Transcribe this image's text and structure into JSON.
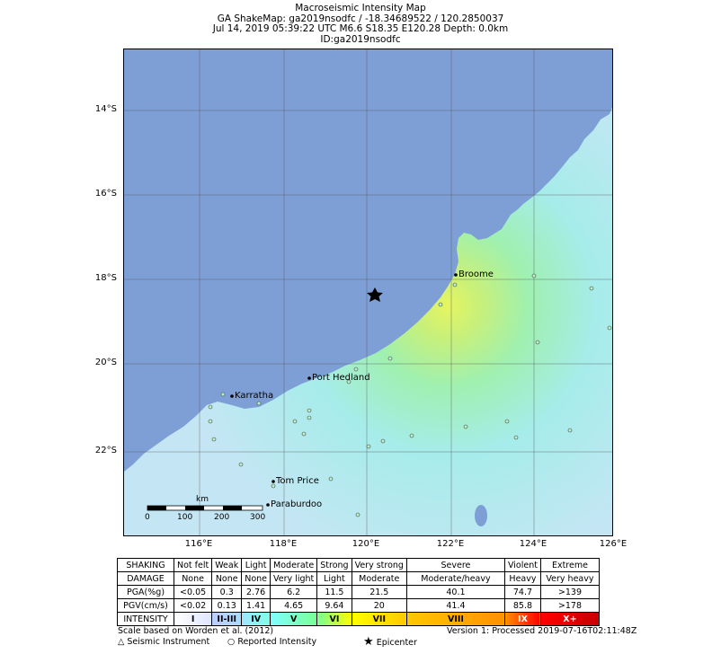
{
  "title": {
    "line1": "Macroseismic Intensity Map",
    "line2": "GA ShakeMap: ga2019nsodfc / -18.34689522 / 120.2850037",
    "line3": "Jul 14, 2019 05:39:22 UTC M6.6 S18.35 E120.28 Depth: 0.0km",
    "line4": "ID:ga2019nsodfc"
  },
  "axes": {
    "lat_labels": [
      "14°S",
      "16°S",
      "18°S",
      "20°S",
      "22°S"
    ],
    "lon_labels": [
      "116°E",
      "118°E",
      "120°E",
      "122°E",
      "124°E",
      "126°E"
    ]
  },
  "places": {
    "broome": "Broome",
    "port_hedland": "Port Hedland",
    "karratha": "Karratha",
    "tom_price": "Tom Price",
    "paraburdoo": "Paraburdoo"
  },
  "scalebar": {
    "unit": "km",
    "ticks": [
      "0",
      "100",
      "200",
      "300"
    ]
  },
  "legend": {
    "rows": [
      {
        "label": "SHAKING",
        "cells": [
          "Not felt",
          "Weak",
          "Light",
          "Moderate",
          "Strong",
          "Very strong",
          "Severe",
          "Violent",
          "Extreme"
        ]
      },
      {
        "label": "DAMAGE",
        "cells": [
          "None",
          "None",
          "None",
          "Very light",
          "Light",
          "Moderate",
          "Moderate/heavy",
          "Heavy",
          "Very heavy"
        ]
      },
      {
        "label": "PGA(%g)",
        "cells": [
          "<0.05",
          "0.3",
          "2.76",
          "6.2",
          "11.5",
          "21.5",
          "40.1",
          "74.7",
          ">139"
        ]
      },
      {
        "label": "PGV(cm/s)",
        "cells": [
          "<0.02",
          "0.13",
          "1.41",
          "4.65",
          "9.64",
          "20",
          "41.4",
          "85.8",
          ">178"
        ]
      },
      {
        "label": "INTENSITY",
        "cells": [
          "I",
          "II-III",
          "IV",
          "V",
          "VI",
          "VII",
          "VIII",
          "IX",
          "X+"
        ]
      }
    ],
    "intensity_colors": [
      "#ffffff",
      "#bfccff",
      "#a0e6ff",
      "#80ffff",
      "#7aff93",
      "#ffff00",
      "#ffc800",
      "#ff9100",
      "#ff0000",
      "#c80000"
    ]
  },
  "footer": {
    "scale_note": "Scale based on Worden et al. (2012)",
    "instrument": "Seismic Instrument",
    "reported": "Reported Intensity",
    "epicenter": "Epicenter",
    "version": "Version 1: Processed 2019-07-16T02:11:48Z"
  },
  "colors": {
    "ocean": "#7d9fd6",
    "land_base": "#b8f0f0",
    "epicenter": "#000000"
  }
}
